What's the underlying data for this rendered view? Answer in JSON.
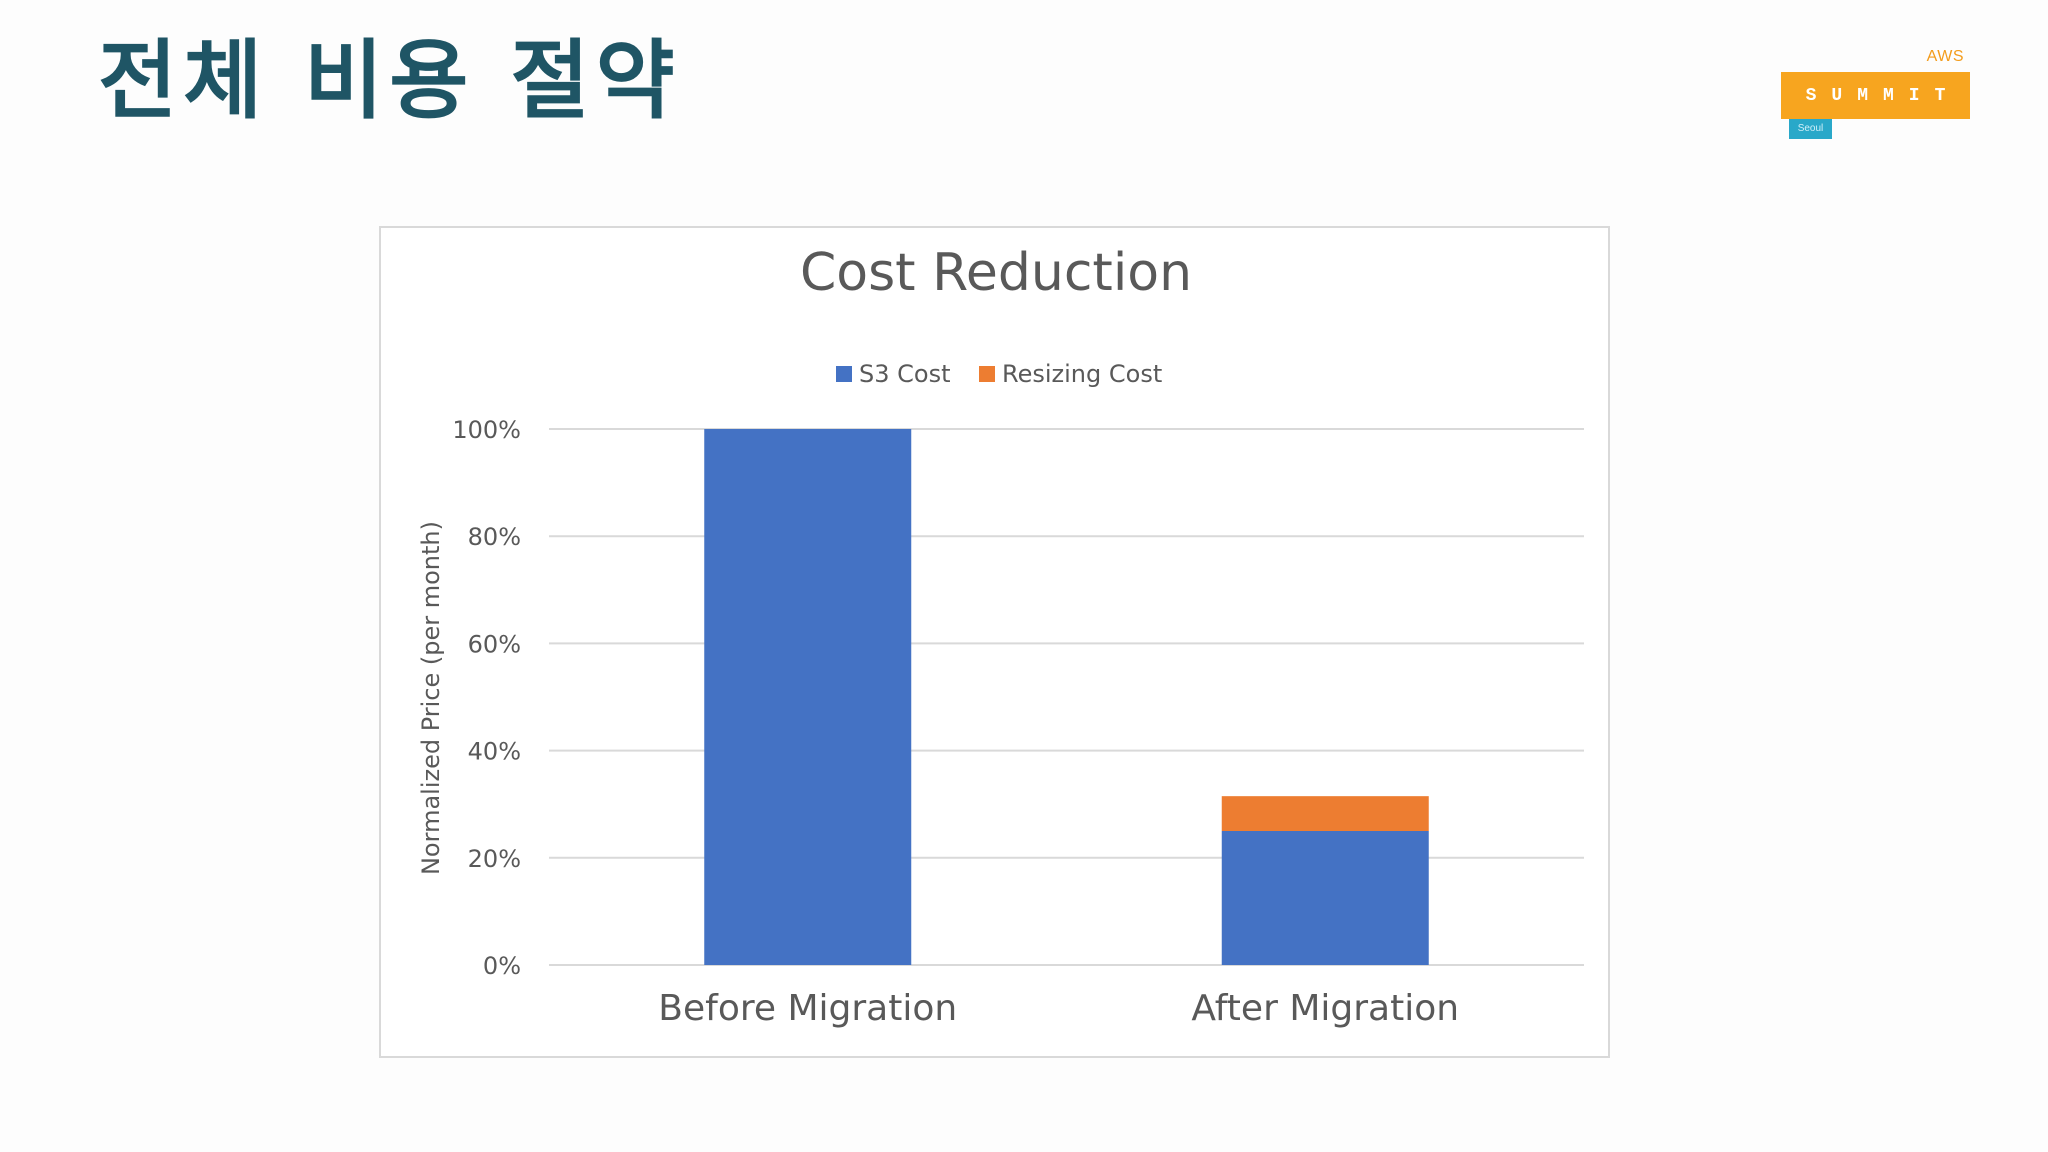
{
  "slide": {
    "title": "전체 비용 절약"
  },
  "logo": {
    "aws": "AWS",
    "summit": "SUMMIT",
    "city": "Seoul"
  },
  "colors": {
    "title": "#1f5565",
    "s3_cost": "#4472c4",
    "resizing_cost": "#ed7d31",
    "grid": "#d9d9d9",
    "logo_orange": "#f7a51f",
    "logo_teal": "#29a8c9"
  },
  "chart_data": {
    "type": "bar",
    "stacked": true,
    "title": "Cost Reduction",
    "xlabel": "",
    "ylabel": "Normalized Price (per month)",
    "categories": [
      "Before Migration",
      "After Migration"
    ],
    "series": [
      {
        "name": "S3 Cost",
        "values": [
          100,
          25
        ],
        "color": "#4472c4"
      },
      {
        "name": "Resizing Cost",
        "values": [
          0,
          6.5
        ],
        "color": "#ed7d31"
      }
    ],
    "ylim": [
      0,
      100
    ],
    "yticks": [
      0,
      20,
      40,
      60,
      80,
      100
    ],
    "ytick_labels": [
      "0%",
      "20%",
      "40%",
      "60%",
      "80%",
      "100%"
    ],
    "grid": true,
    "legend_position": "top-center"
  }
}
